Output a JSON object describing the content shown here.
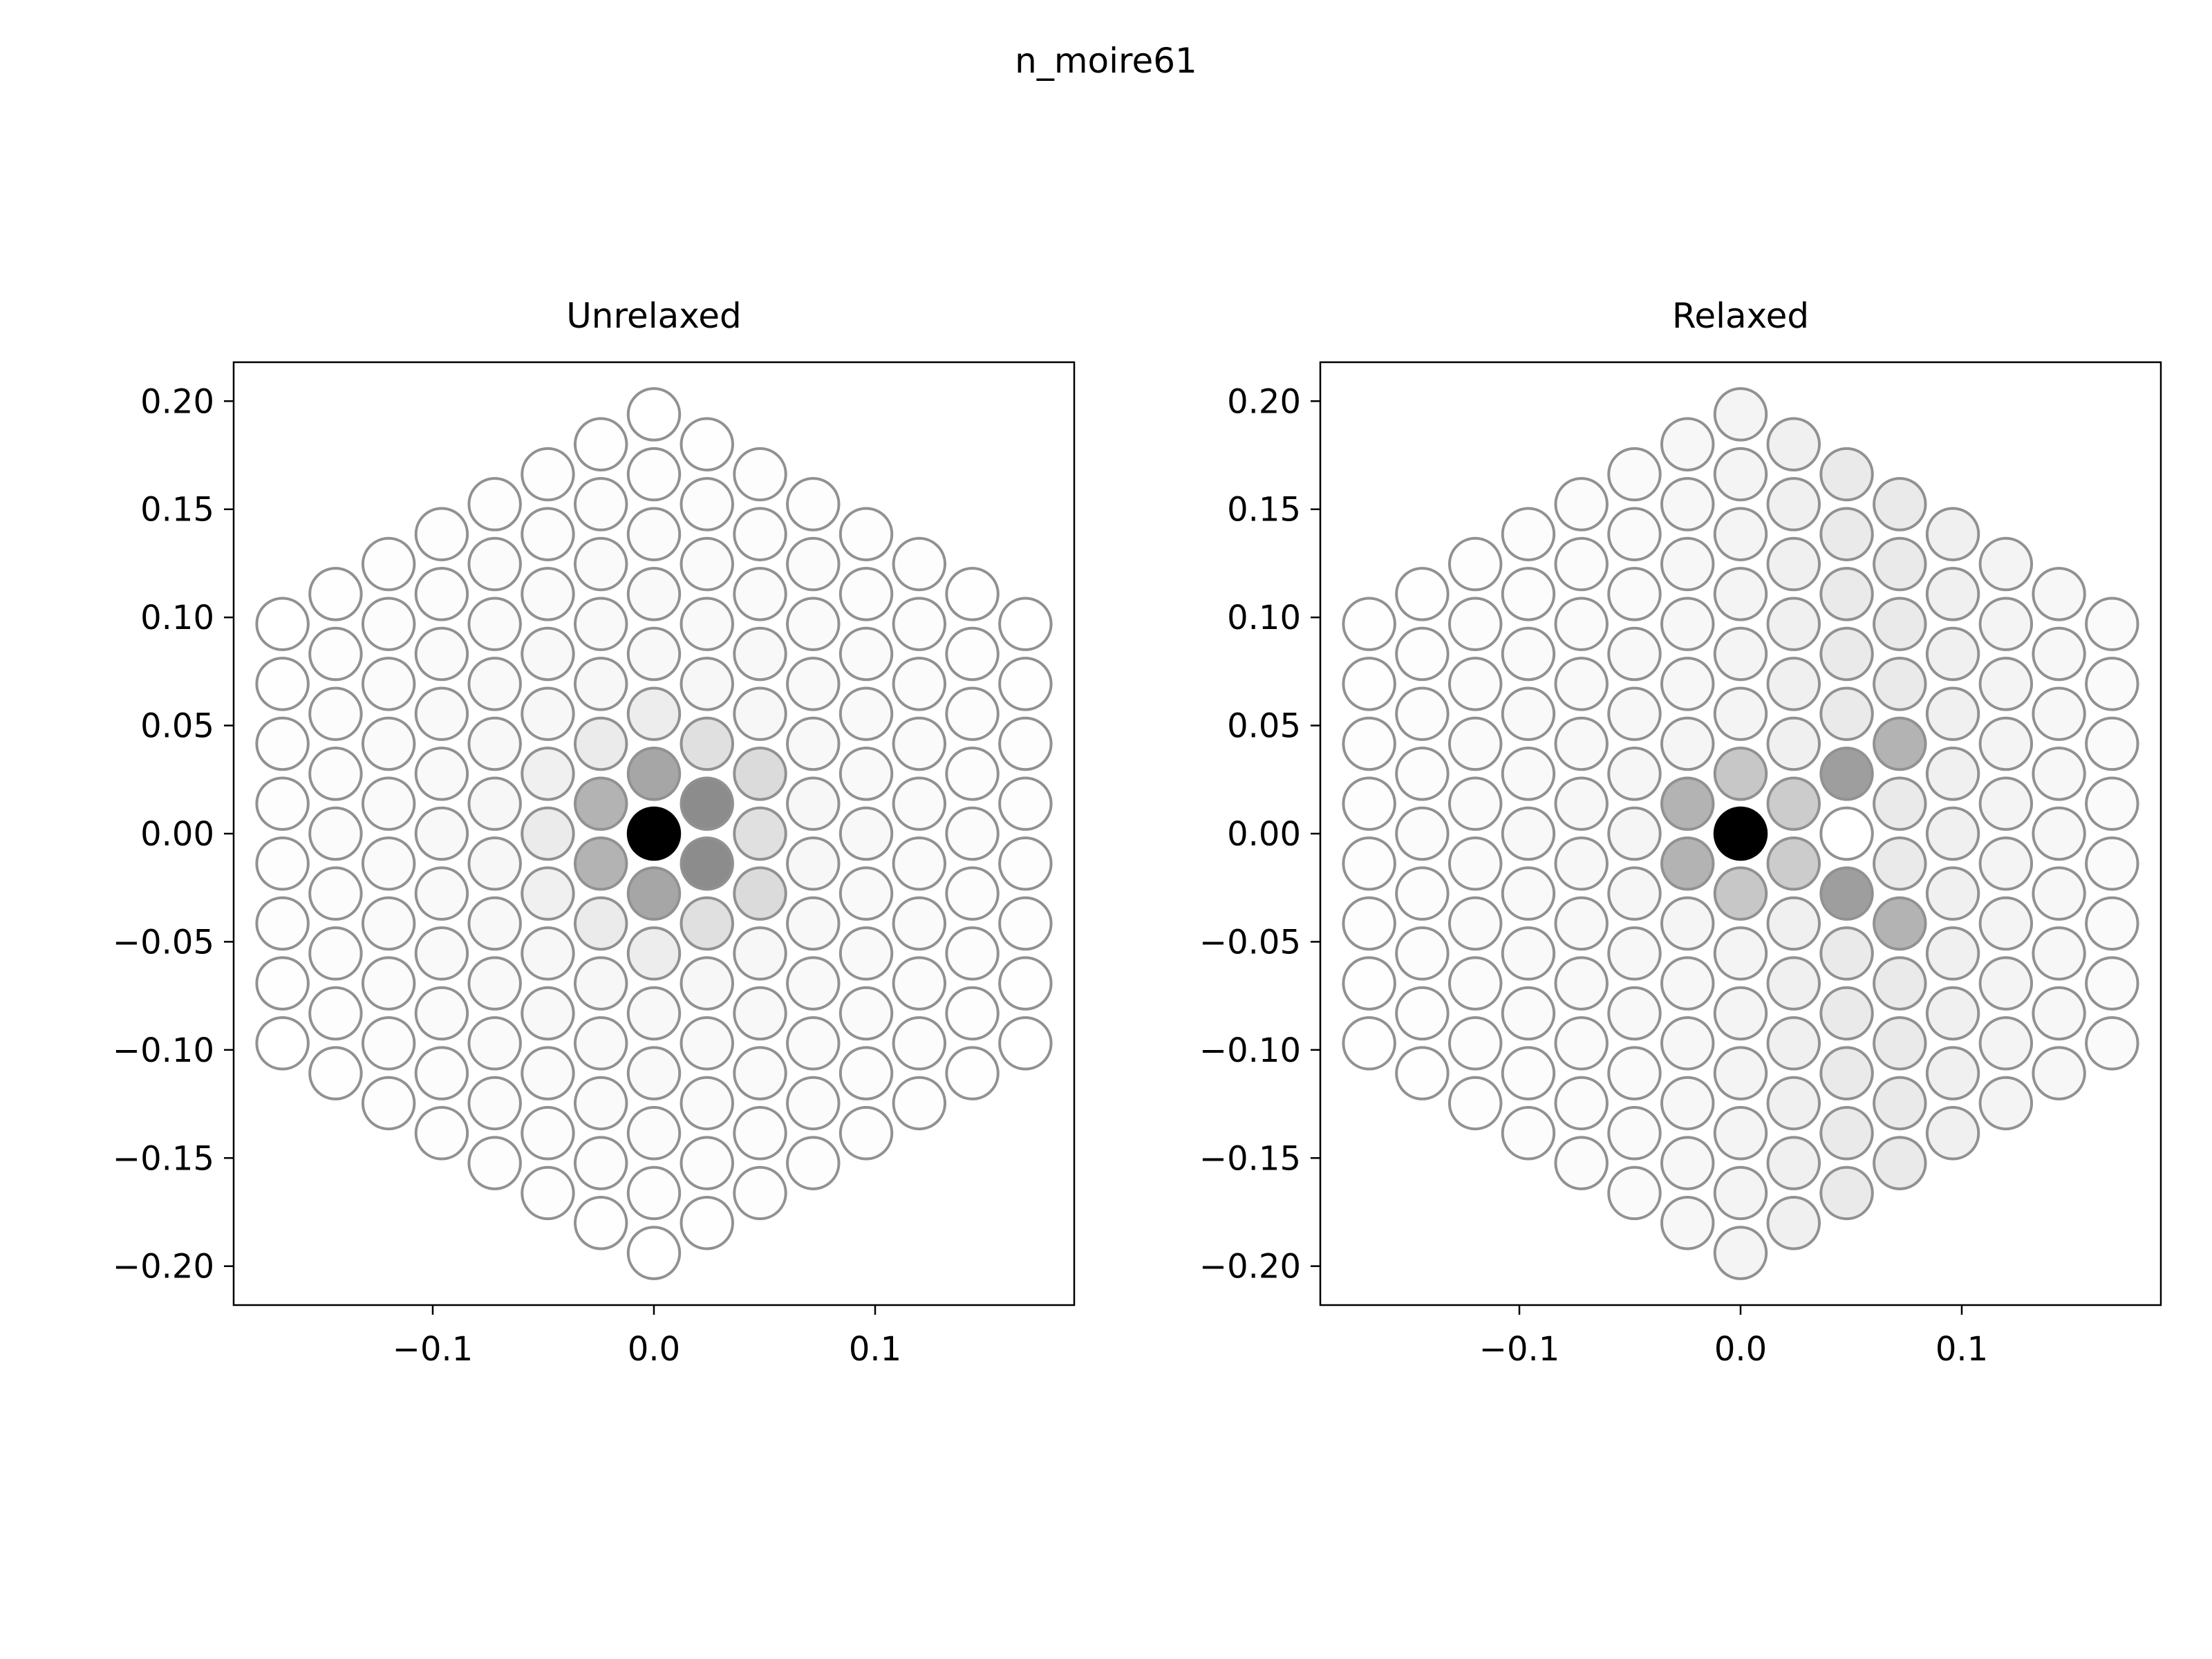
{
  "suptitle": "n_moire61",
  "chart_data": [
    {
      "type": "scatter",
      "title": "Unrelaxed",
      "xlabel": "",
      "ylabel": "",
      "xlim": [
        -0.19,
        0.19
      ],
      "ylim": [
        -0.218,
        0.218
      ],
      "xticks": [
        -0.1,
        0.0,
        0.1
      ],
      "xtick_labels": [
        "−0.1",
        "0.0",
        "0.1"
      ],
      "yticks": [
        0.2,
        0.15,
        0.1,
        0.05,
        0.0,
        -0.05,
        -0.1,
        -0.15,
        -0.2
      ],
      "ytick_labels": [
        "0.20",
        "0.15",
        "0.10",
        "0.05",
        "0.00",
        "−0.05",
        "−0.10",
        "−0.15",
        "−0.20"
      ],
      "grid": false,
      "lattice": {
        "a": 0.0277,
        "rings": 7
      },
      "point_style": {
        "edge_color": "#919191",
        "shading": "greyscale value 0 (white) to 1 (black)"
      },
      "shaded_points": [
        {
          "x": 0.0,
          "y": 0.0,
          "v": 1.0
        },
        {
          "x": -0.024,
          "y": 0.014,
          "v": 0.3
        },
        {
          "x": -0.024,
          "y": -0.014,
          "v": 0.3
        },
        {
          "x": 0.024,
          "y": 0.014,
          "v": 0.45
        },
        {
          "x": 0.024,
          "y": -0.014,
          "v": 0.45
        },
        {
          "x": 0.0,
          "y": 0.028,
          "v": 0.35
        },
        {
          "x": 0.0,
          "y": -0.028,
          "v": 0.35
        },
        {
          "x": -0.024,
          "y": 0.042,
          "v": 0.08
        },
        {
          "x": -0.024,
          "y": -0.042,
          "v": 0.08
        },
        {
          "x": 0.024,
          "y": 0.042,
          "v": 0.12
        },
        {
          "x": 0.024,
          "y": -0.042,
          "v": 0.12
        },
        {
          "x": -0.048,
          "y": 0.0,
          "v": 0.08
        },
        {
          "x": 0.048,
          "y": 0.0,
          "v": 0.12
        },
        {
          "x": 0.048,
          "y": 0.028,
          "v": 0.14
        },
        {
          "x": 0.048,
          "y": -0.028,
          "v": 0.14
        },
        {
          "x": -0.048,
          "y": 0.028,
          "v": 0.06
        },
        {
          "x": -0.048,
          "y": -0.028,
          "v": 0.06
        },
        {
          "x": 0.0,
          "y": 0.055,
          "v": 0.07
        },
        {
          "x": 0.0,
          "y": -0.055,
          "v": 0.07
        }
      ],
      "default_value": 0.0
    },
    {
      "type": "scatter",
      "title": "Relaxed",
      "xlabel": "",
      "ylabel": "",
      "xlim": [
        -0.19,
        0.19
      ],
      "ylim": [
        -0.218,
        0.218
      ],
      "xticks": [
        -0.1,
        0.0,
        0.1
      ],
      "xtick_labels": [
        "−0.1",
        "0.0",
        "0.1"
      ],
      "yticks": [
        0.2,
        0.15,
        0.1,
        0.05,
        0.0,
        -0.05,
        -0.1,
        -0.15,
        -0.2
      ],
      "ytick_labels": [
        "0.20",
        "0.15",
        "0.10",
        "0.05",
        "0.00",
        "−0.05",
        "−0.10",
        "−0.15",
        "−0.20"
      ],
      "grid": false,
      "lattice": {
        "a": 0.0277,
        "rings": 7
      },
      "point_style": {
        "edge_color": "#919191",
        "shading": "greyscale value 0 (white) to 1 (black)"
      },
      "shaded_points": [
        {
          "x": 0.0,
          "y": 0.0,
          "v": 1.0
        },
        {
          "x": -0.024,
          "y": 0.014,
          "v": 0.3
        },
        {
          "x": -0.024,
          "y": -0.014,
          "v": 0.3
        },
        {
          "x": 0.0,
          "y": 0.028,
          "v": 0.22
        },
        {
          "x": 0.0,
          "y": -0.028,
          "v": 0.22
        },
        {
          "x": 0.024,
          "y": 0.014,
          "v": 0.2
        },
        {
          "x": 0.024,
          "y": -0.014,
          "v": 0.2
        },
        {
          "x": 0.048,
          "y": 0.028,
          "v": 0.38
        },
        {
          "x": 0.048,
          "y": -0.028,
          "v": 0.38
        },
        {
          "x": 0.048,
          "y": 0.0,
          "v": 0.0
        },
        {
          "x": 0.072,
          "y": 0.042,
          "v": 0.3
        },
        {
          "x": 0.072,
          "y": -0.042,
          "v": 0.3
        }
      ],
      "default_value": 0.0
    }
  ]
}
